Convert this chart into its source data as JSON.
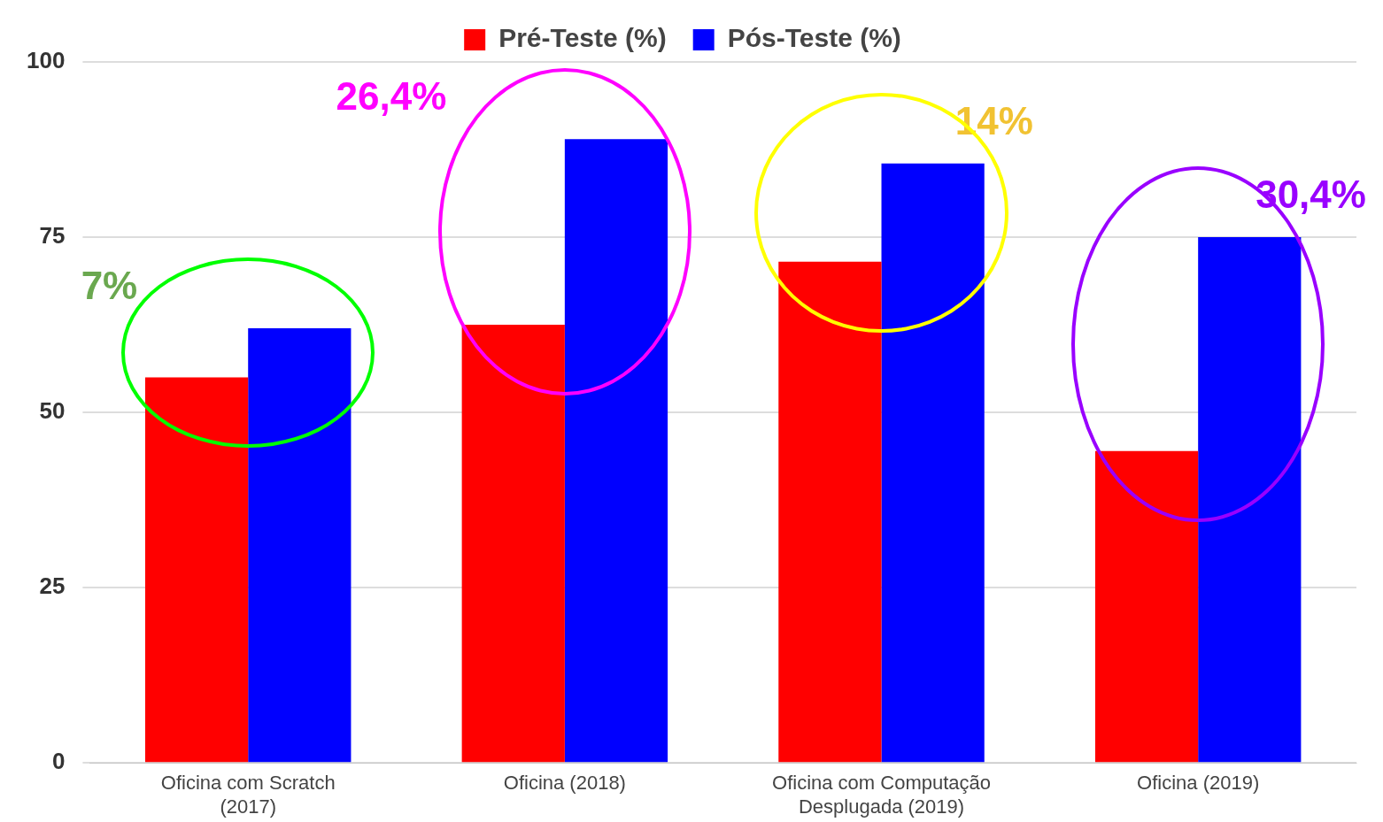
{
  "chart_data": {
    "type": "bar",
    "categories": [
      "Oficina com Scratch (2017)",
      "Oficina (2018)",
      "Oficina com Computação Desplugada (2019)",
      "Oficina (2019)"
    ],
    "series": [
      {
        "name": "Pré-Teste (%)",
        "color": "#ff0000",
        "values": [
          55,
          62.5,
          71.5,
          44.5
        ]
      },
      {
        "name": "Pós-Teste (%)",
        "color": "#0000ff",
        "values": [
          62,
          89,
          85.5,
          75
        ]
      }
    ],
    "ylim": [
      0,
      100
    ],
    "yticks": [
      0,
      25,
      50,
      75,
      100
    ],
    "grid": "y",
    "legend": "top",
    "annotations": [
      "7%",
      "26,4%",
      "14%",
      "30,4%"
    ]
  }
}
